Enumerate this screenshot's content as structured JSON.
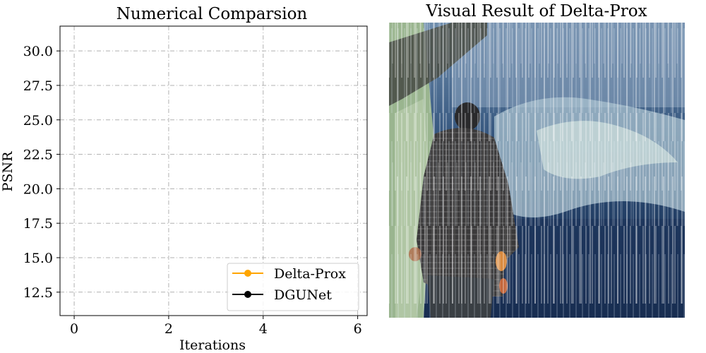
{
  "figure": {
    "left_panel": {
      "title": "Numerical Comparsion"
    },
    "right_panel": {
      "title": "Visual Result of Delta-Prox",
      "image_description_icon": "rainy-photo-image"
    }
  },
  "chart_data": {
    "type": "line",
    "title": "Numerical Comparsion",
    "xlabel": "Iterations",
    "ylabel": "PSNR",
    "xlim": [
      -0.3,
      6.2
    ],
    "ylim": [
      10.8,
      31.8
    ],
    "xticks": [
      0,
      2,
      4,
      6
    ],
    "xtick_labels": [
      "0",
      "2",
      "4",
      "6"
    ],
    "yticks": [
      12.5,
      15.0,
      17.5,
      20.0,
      22.5,
      25.0,
      27.5,
      30.0
    ],
    "ytick_labels": [
      "12.5",
      "15.0",
      "17.5",
      "20.0",
      "22.5",
      "25.0",
      "27.5",
      "30.0"
    ],
    "grid": true,
    "legend_position": "lower-right",
    "series": [
      {
        "name": "Delta-Prox",
        "color": "#ffa500",
        "marker": "circle",
        "x": [],
        "y": []
      },
      {
        "name": "DGUNet",
        "color": "#000000",
        "marker": "circle",
        "x": [],
        "y": []
      }
    ]
  }
}
